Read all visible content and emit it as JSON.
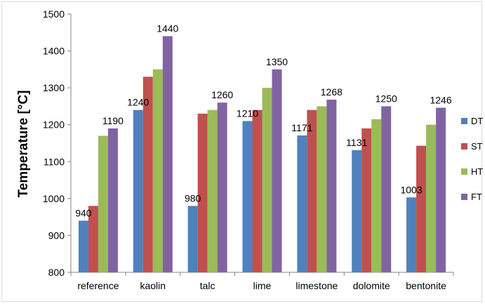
{
  "chart_data": {
    "type": "bar",
    "title": "",
    "xlabel": "",
    "ylabel": "Temperature [°C]",
    "ylim": [
      800,
      1500
    ],
    "yticks": [
      800,
      900,
      1000,
      1100,
      1200,
      1300,
      1400,
      1500
    ],
    "categories": [
      "reference",
      "kaolin",
      "talc",
      "lime",
      "limestone",
      "dolomite",
      "bentonite"
    ],
    "series": [
      {
        "name": "DT",
        "color": "#4f81bd",
        "values": [
          940,
          1240,
          980,
          1210,
          1171,
          1131,
          1003
        ]
      },
      {
        "name": "ST",
        "color": "#c0504d",
        "values": [
          980,
          1330,
          1230,
          1240,
          1240,
          1190,
          1143
        ]
      },
      {
        "name": "HT",
        "color": "#9bbb59",
        "values": [
          1170,
          1350,
          1240,
          1300,
          1250,
          1215,
          1200
        ]
      },
      {
        "name": "FT",
        "color": "#8064a2",
        "values": [
          1190,
          1440,
          1260,
          1350,
          1268,
          1250,
          1246
        ]
      }
    ],
    "data_labels": [
      {
        "category": "reference",
        "series": "DT",
        "text": "940"
      },
      {
        "category": "reference",
        "series": "FT",
        "text": "1190"
      },
      {
        "category": "kaolin",
        "series": "DT",
        "text": "1240"
      },
      {
        "category": "kaolin",
        "series": "FT",
        "text": "1440"
      },
      {
        "category": "talc",
        "series": "DT",
        "text": "980"
      },
      {
        "category": "talc",
        "series": "FT",
        "text": "1260"
      },
      {
        "category": "lime",
        "series": "DT",
        "text": "1210"
      },
      {
        "category": "lime",
        "series": "FT",
        "text": "1350"
      },
      {
        "category": "limestone",
        "series": "DT",
        "text": "1171"
      },
      {
        "category": "limestone",
        "series": "FT",
        "text": "1268"
      },
      {
        "category": "dolomite",
        "series": "DT",
        "text": "1131"
      },
      {
        "category": "dolomite",
        "series": "FT",
        "text": "1250"
      },
      {
        "category": "bentonite",
        "series": "DT",
        "text": "1003"
      },
      {
        "category": "bentonite",
        "series": "FT",
        "text": "1246"
      }
    ],
    "grid": false,
    "legend_position": "right"
  }
}
